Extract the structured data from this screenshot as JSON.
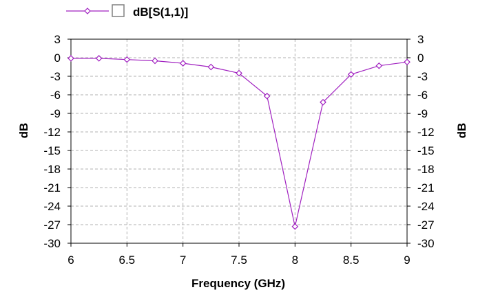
{
  "colors": {
    "series": "#a020c0",
    "grid": "#b0b0b0",
    "axis": "#000000",
    "legend_box": "#808080"
  },
  "chart_data": {
    "type": "line",
    "title": "",
    "xlabel": "Frequency (GHz)",
    "ylabel_left": "dB",
    "ylabel_right": "dB",
    "xlim": [
      6,
      9
    ],
    "ylim": [
      -30,
      3
    ],
    "x_ticks": [
      6,
      6.5,
      7,
      7.5,
      8,
      8.5,
      9
    ],
    "x_tick_labels": [
      "6",
      "6.5",
      "7",
      "7.5",
      "8",
      "8.5",
      "9"
    ],
    "y_ticks": [
      3,
      0,
      -3,
      -6,
      -9,
      -12,
      -15,
      -18,
      -21,
      -24,
      -27,
      -30
    ],
    "y_tick_labels": [
      "3",
      "0",
      "-3",
      "-6",
      "-9",
      "-12",
      "-15",
      "-18",
      "-21",
      "-24",
      "-27",
      "-30"
    ],
    "grid": true,
    "legend_position": "top-left",
    "series": [
      {
        "name": "dB[S(1,1)]",
        "marker": "diamond",
        "x": [
          6,
          6.25,
          6.5,
          6.75,
          7,
          7.25,
          7.5,
          7.75,
          8,
          8.25,
          8.5,
          8.75,
          9
        ],
        "y": [
          -0.1,
          -0.1,
          -0.3,
          -0.5,
          -0.9,
          -1.5,
          -2.5,
          -6.2,
          -27.3,
          -7.2,
          -2.7,
          -1.3,
          -0.7
        ]
      }
    ]
  }
}
